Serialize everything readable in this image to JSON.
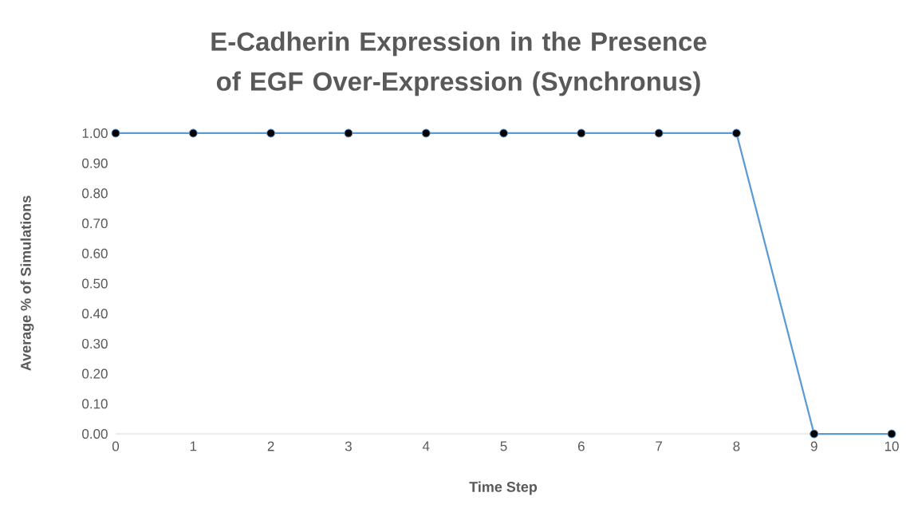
{
  "chart_data": {
    "type": "line",
    "title": "E-Cadherin Expression in the Presence of EGF Over-Expression (Synchronus)",
    "xlabel": "Time Step",
    "ylabel": "Average % of Simulations",
    "categories": [
      "0",
      "1",
      "2",
      "3",
      "4",
      "5",
      "6",
      "7",
      "8",
      "9",
      "10"
    ],
    "series": [
      {
        "color": "#5b9bd5",
        "values": [
          1,
          1,
          1,
          1,
          1,
          1,
          1,
          1,
          1,
          0,
          0
        ]
      }
    ],
    "ylim": [
      0,
      1
    ],
    "yticks": [
      {
        "value": 0,
        "label": "0.00"
      },
      {
        "value": 0.1,
        "label": "0.10"
      },
      {
        "value": 0.2,
        "label": "0.20"
      },
      {
        "value": 0.3,
        "label": "0.30"
      },
      {
        "value": 0.4,
        "label": "0.40"
      },
      {
        "value": 0.5,
        "label": "0.50"
      },
      {
        "value": 0.6,
        "label": "0.60"
      },
      {
        "value": 0.7,
        "label": "0.70"
      },
      {
        "value": 0.8,
        "label": "0.80"
      },
      {
        "value": 0.9,
        "label": "0.90"
      },
      {
        "value": 1,
        "label": "1.00"
      }
    ],
    "marker": "circle",
    "line_style": "solid"
  }
}
